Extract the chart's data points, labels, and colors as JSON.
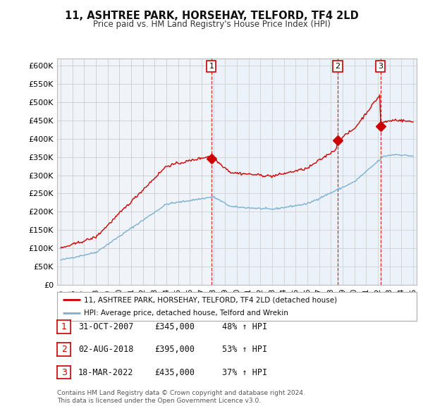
{
  "title": "11, ASHTREE PARK, HORSEHAY, TELFORD, TF4 2LD",
  "subtitle": "Price paid vs. HM Land Registry's House Price Index (HPI)",
  "ylim": [
    0,
    620000
  ],
  "yticks": [
    0,
    50000,
    100000,
    150000,
    200000,
    250000,
    300000,
    350000,
    400000,
    450000,
    500000,
    550000,
    600000
  ],
  "ytick_labels": [
    "£0",
    "£50K",
    "£100K",
    "£150K",
    "£200K",
    "£250K",
    "£300K",
    "£350K",
    "£400K",
    "£450K",
    "£500K",
    "£550K",
    "£600K"
  ],
  "red_line_color": "#cc0000",
  "blue_line_color": "#7ab0d4",
  "blue_fill_color": "#ddeeff",
  "grid_color": "#cccccc",
  "bg_color": "#ffffff",
  "plot_bg_color": "#f0f4f8",
  "sales": [
    {
      "date_num": 2007.83,
      "price": 345000,
      "label": "1"
    },
    {
      "date_num": 2018.58,
      "price": 395000,
      "label": "2"
    },
    {
      "date_num": 2022.21,
      "price": 435000,
      "label": "3"
    }
  ],
  "legend_red_label": "11, ASHTREE PARK, HORSEHAY, TELFORD, TF4 2LD (detached house)",
  "legend_blue_label": "HPI: Average price, detached house, Telford and Wrekin",
  "table_rows": [
    {
      "num": "1",
      "date": "31-OCT-2007",
      "price": "£345,000",
      "hpi": "48% ↑ HPI"
    },
    {
      "num": "2",
      "date": "02-AUG-2018",
      "price": "£395,000",
      "hpi": "53% ↑ HPI"
    },
    {
      "num": "3",
      "date": "18-MAR-2022",
      "price": "£435,000",
      "hpi": "37% ↑ HPI"
    }
  ],
  "footnote": "Contains HM Land Registry data © Crown copyright and database right 2024.\nThis data is licensed under the Open Government Licence v3.0."
}
